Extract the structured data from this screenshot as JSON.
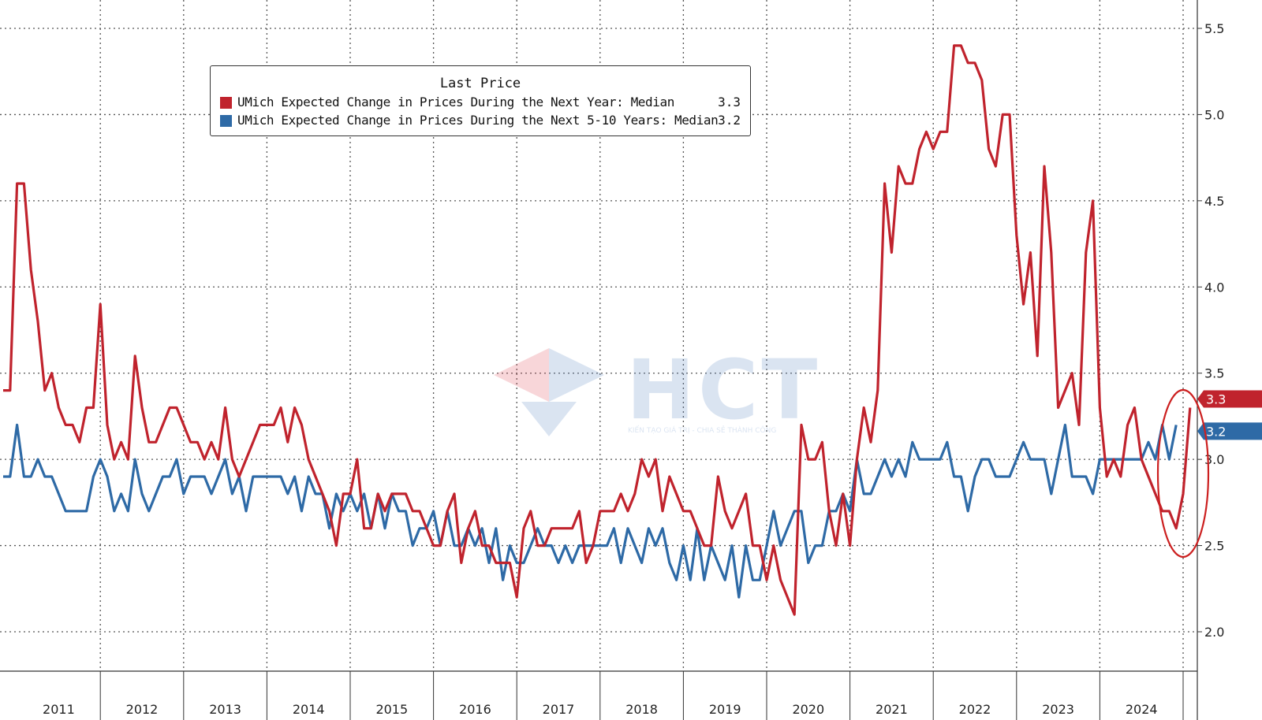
{
  "chart_data": {
    "type": "line",
    "title": "",
    "xlabel": "",
    "ylabel": "",
    "x_start": "2010-11",
    "x_tick_labels": [
      "2011",
      "2012",
      "2013",
      "2014",
      "2015",
      "2016",
      "2017",
      "2018",
      "2019",
      "2020",
      "2021",
      "2022",
      "2023",
      "2024"
    ],
    "y_ticks": [
      "2.0",
      "2.5",
      "3.0",
      "3.5",
      "4.0",
      "4.5",
      "5.0",
      "5.5"
    ],
    "ylim": [
      1.85,
      5.65
    ],
    "grid": true,
    "legend_position": "top-left",
    "legend_title": "Last Price",
    "series": [
      {
        "name": "UMich Expected Change in Prices During the Next Year: Median",
        "last_value": "3.3",
        "color": "#c0232d",
        "values": [
          3.4,
          3.4,
          4.6,
          4.6,
          4.1,
          3.8,
          3.4,
          3.5,
          3.3,
          3.2,
          3.2,
          3.1,
          3.3,
          3.3,
          3.9,
          3.2,
          3.0,
          3.1,
          3.0,
          3.6,
          3.3,
          3.1,
          3.1,
          3.2,
          3.3,
          3.3,
          3.2,
          3.1,
          3.1,
          3.0,
          3.1,
          3.0,
          3.3,
          3.0,
          2.9,
          3.0,
          3.1,
          3.2,
          3.2,
          3.2,
          3.3,
          3.1,
          3.3,
          3.2,
          3.0,
          2.9,
          2.8,
          2.7,
          2.5,
          2.8,
          2.8,
          3.0,
          2.6,
          2.6,
          2.8,
          2.7,
          2.8,
          2.8,
          2.8,
          2.7,
          2.7,
          2.6,
          2.5,
          2.5,
          2.7,
          2.8,
          2.4,
          2.6,
          2.7,
          2.5,
          2.5,
          2.4,
          2.4,
          2.4,
          2.2,
          2.6,
          2.7,
          2.5,
          2.5,
          2.6,
          2.6,
          2.6,
          2.6,
          2.7,
          2.4,
          2.5,
          2.7,
          2.7,
          2.7,
          2.8,
          2.7,
          2.8,
          3.0,
          2.9,
          3.0,
          2.7,
          2.9,
          2.8,
          2.7,
          2.7,
          2.6,
          2.5,
          2.5,
          2.9,
          2.7,
          2.6,
          2.7,
          2.8,
          2.5,
          2.5,
          2.3,
          2.5,
          2.3,
          2.2,
          2.1,
          3.2,
          3.0,
          3.0,
          3.1,
          2.7,
          2.5,
          2.8,
          2.5,
          3.0,
          3.3,
          3.1,
          3.4,
          4.6,
          4.2,
          4.7,
          4.6,
          4.6,
          4.8,
          4.9,
          4.8,
          4.9,
          4.9,
          5.4,
          5.4,
          5.3,
          5.3,
          5.2,
          4.8,
          4.7,
          5.0,
          5.0,
          4.3,
          3.9,
          4.2,
          3.6,
          4.7,
          4.2,
          3.3,
          3.4,
          3.5,
          3.2,
          4.2,
          4.5,
          3.3,
          2.9,
          3.0,
          2.9,
          3.2,
          3.3,
          3.0,
          2.9,
          2.8,
          2.7,
          2.7,
          2.6,
          2.8,
          3.3
        ]
      },
      {
        "name": "UMich Expected Change in Prices During the Next 5-10 Years: Median",
        "last_value": "3.2",
        "color": "#2e6aa6",
        "values": [
          2.9,
          2.9,
          3.2,
          2.9,
          2.9,
          3.0,
          2.9,
          2.9,
          2.8,
          2.7,
          2.7,
          2.7,
          2.7,
          2.9,
          3.0,
          2.9,
          2.7,
          2.8,
          2.7,
          3.0,
          2.8,
          2.7,
          2.8,
          2.9,
          2.9,
          3.0,
          2.8,
          2.9,
          2.9,
          2.9,
          2.8,
          2.9,
          3.0,
          2.8,
          2.9,
          2.7,
          2.9,
          2.9,
          2.9,
          2.9,
          2.9,
          2.8,
          2.9,
          2.7,
          2.9,
          2.8,
          2.8,
          2.6,
          2.8,
          2.7,
          2.8,
          2.7,
          2.8,
          2.6,
          2.8,
          2.6,
          2.8,
          2.7,
          2.7,
          2.5,
          2.6,
          2.6,
          2.7,
          2.5,
          2.7,
          2.5,
          2.5,
          2.6,
          2.5,
          2.6,
          2.4,
          2.6,
          2.3,
          2.5,
          2.4,
          2.4,
          2.5,
          2.6,
          2.5,
          2.5,
          2.4,
          2.5,
          2.4,
          2.5,
          2.5,
          2.5,
          2.5,
          2.5,
          2.6,
          2.4,
          2.6,
          2.5,
          2.4,
          2.6,
          2.5,
          2.6,
          2.4,
          2.3,
          2.5,
          2.3,
          2.6,
          2.3,
          2.5,
          2.4,
          2.3,
          2.5,
          2.2,
          2.5,
          2.3,
          2.3,
          2.5,
          2.7,
          2.5,
          2.6,
          2.7,
          2.7,
          2.4,
          2.5,
          2.5,
          2.7,
          2.7,
          2.8,
          2.7,
          3.0,
          2.8,
          2.8,
          2.9,
          3.0,
          2.9,
          3.0,
          2.9,
          3.1,
          3.0,
          3.0,
          3.0,
          3.0,
          3.1,
          2.9,
          2.9,
          2.7,
          2.9,
          3.0,
          3.0,
          2.9,
          2.9,
          2.9,
          3.0,
          3.1,
          3.0,
          3.0,
          3.0,
          2.8,
          3.0,
          3.2,
          2.9,
          2.9,
          2.9,
          2.8,
          3.0,
          3.0,
          3.0,
          3.0,
          3.0,
          3.0,
          3.0,
          3.1,
          3.0,
          3.2,
          3.0,
          3.2
        ]
      }
    ],
    "annotation": "red ellipse highlighting latest values"
  },
  "legend": {
    "title": "Last Price",
    "series1_label": "UMich Expected Change in Prices During the Next Year: Median",
    "series1_value": "3.3",
    "series2_label": "UMich Expected Change in Prices During the Next 5-10 Years: Median",
    "series2_value": "3.2"
  },
  "watermark": {
    "text": "HCT",
    "tagline": "KIẾN TẠO GIÁ TRỊ - CHIA SẺ THÀNH CÔNG"
  }
}
